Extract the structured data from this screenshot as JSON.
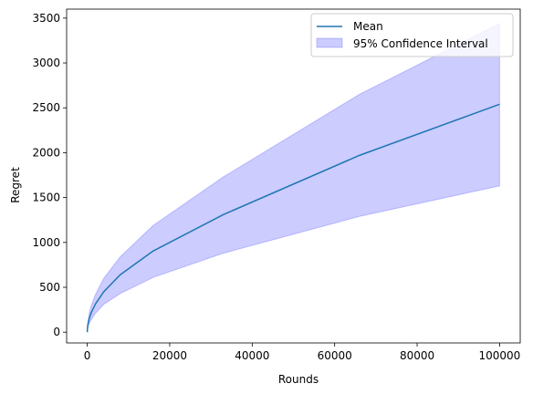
{
  "chart_data": {
    "type": "line",
    "title": "",
    "xlabel": "Rounds",
    "ylabel": "Regret",
    "xlim": [
      -5000,
      105000
    ],
    "ylim": [
      -120,
      3600
    ],
    "xticks": [
      0,
      20000,
      40000,
      60000,
      80000,
      100000
    ],
    "xtick_labels": [
      "0",
      "20000",
      "40000",
      "60000",
      "80000",
      "100000"
    ],
    "yticks": [
      0,
      500,
      1000,
      1500,
      2000,
      2500,
      3000,
      3500
    ],
    "ytick_labels": [
      "0",
      "500",
      "1000",
      "1500",
      "2000",
      "2500",
      "3000",
      "3500"
    ],
    "grid": false,
    "legend_position": "upper right",
    "colors": {
      "mean": "#1f77b4",
      "ci_fill": "#0000ff",
      "ci_fill_opacity": 0.2
    },
    "x": [
      0,
      100,
      500,
      1000,
      2000,
      4000,
      8000,
      16000,
      33000,
      66000,
      100000
    ],
    "series": [
      {
        "name": "Mean",
        "kind": "line",
        "values": [
          0,
          70,
          155,
          220,
          315,
          450,
          640,
          905,
          1310,
          1970,
          2540
        ]
      },
      {
        "name": "95% Confidence Interval",
        "kind": "band",
        "lower": [
          0,
          45,
          100,
          140,
          210,
          310,
          430,
          610,
          880,
          1290,
          1630
        ],
        "upper": [
          0,
          95,
          215,
          300,
          420,
          600,
          840,
          1190,
          1730,
          2650,
          3440
        ]
      }
    ]
  }
}
